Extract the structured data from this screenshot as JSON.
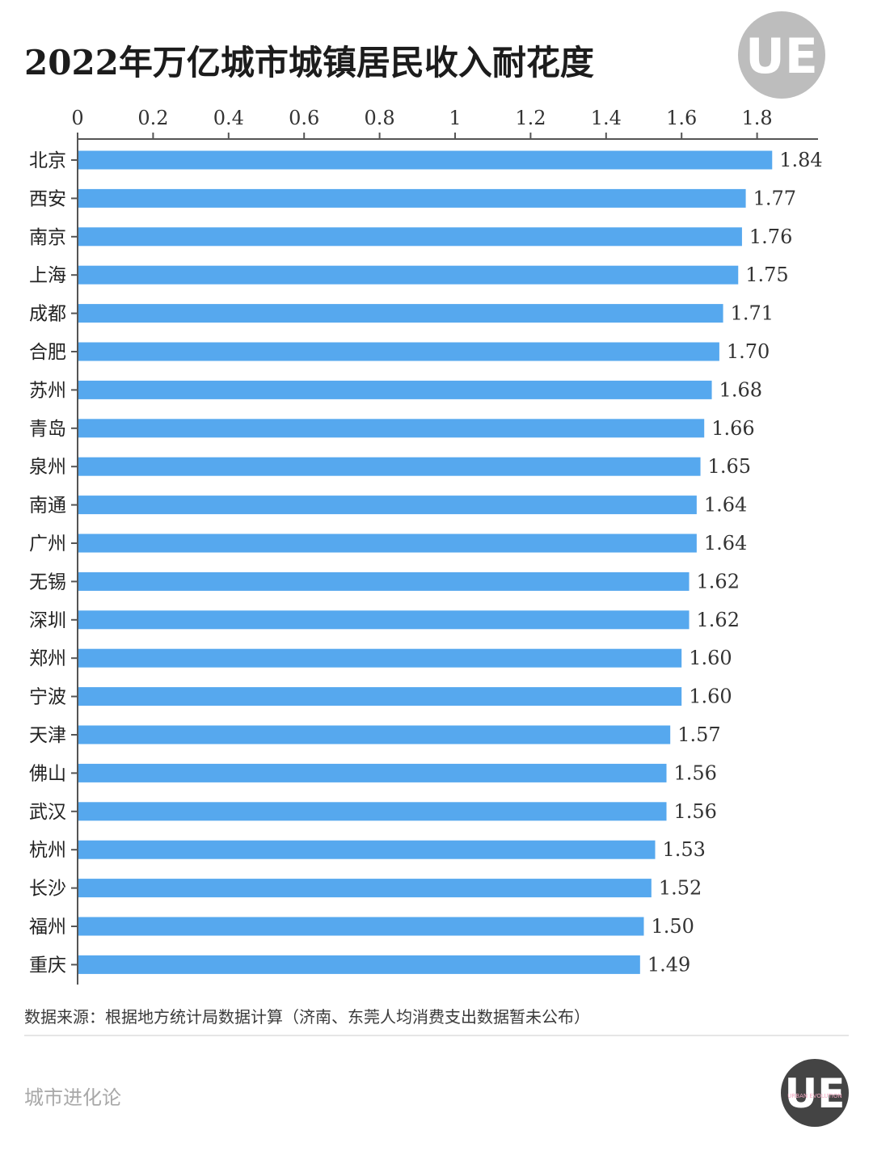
{
  "header": {
    "title": "2022年万亿城市城镇居民收入耐花度"
  },
  "logo": {
    "top_letters": "UE",
    "bottom_letters": "UE",
    "bottom_small_text": "URBAN EVOLUTION"
  },
  "footer": {
    "source": "数据来源：根据地方统计局数据计算（济南、东莞人均消费支出数据暂未公布）",
    "brand": "城市进化论"
  },
  "colors": {
    "bar": "#56A8EE",
    "axis": "#555555",
    "logo_top_bg": "#BDBDBD",
    "logo_bottom_bg": "#444444"
  },
  "chart_data": {
    "type": "bar",
    "orientation": "horizontal",
    "x_axis_position": "top",
    "categories": [
      "北京",
      "西安",
      "南京",
      "上海",
      "成都",
      "合肥",
      "苏州",
      "青岛",
      "泉州",
      "南通",
      "广州",
      "无锡",
      "深圳",
      "郑州",
      "宁波",
      "天津",
      "佛山",
      "武汉",
      "杭州",
      "长沙",
      "福州",
      "重庆"
    ],
    "values": [
      1.84,
      1.77,
      1.76,
      1.75,
      1.71,
      1.7,
      1.68,
      1.66,
      1.65,
      1.64,
      1.64,
      1.62,
      1.62,
      1.6,
      1.6,
      1.57,
      1.56,
      1.56,
      1.53,
      1.52,
      1.5,
      1.49
    ],
    "value_labels": [
      "1.84",
      "1.77",
      "1.76",
      "1.75",
      "1.71",
      "1.70",
      "1.68",
      "1.66",
      "1.65",
      "1.64",
      "1.64",
      "1.62",
      "1.62",
      "1.60",
      "1.60",
      "1.57",
      "1.56",
      "1.56",
      "1.53",
      "1.52",
      "1.50",
      "1.49"
    ],
    "x_ticks": [
      0,
      0.2,
      0.4,
      0.6,
      0.8,
      1,
      1.2,
      1.4,
      1.6,
      1.8
    ],
    "x_tick_labels": [
      "0",
      "0.2",
      "0.4",
      "0.6",
      "0.8",
      "1",
      "1.2",
      "1.4",
      "1.6",
      "1.8"
    ],
    "xlim": [
      0,
      1.94
    ],
    "grid": false,
    "legend": "none"
  }
}
